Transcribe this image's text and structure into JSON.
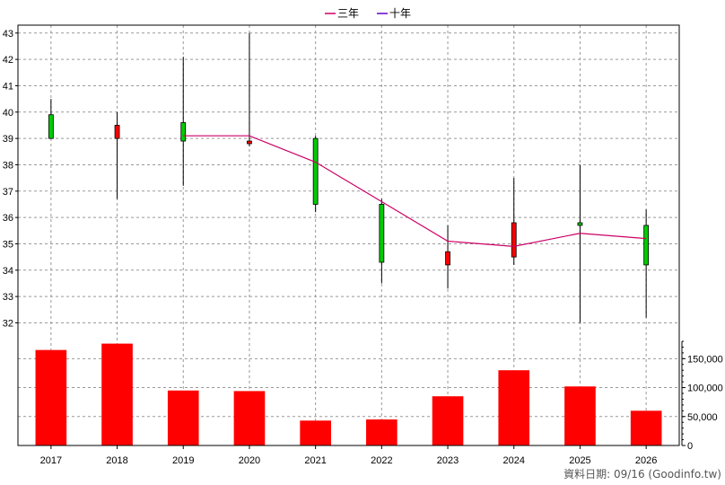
{
  "chart_data": {
    "type": "candlestick+bar",
    "legend": [
      {
        "label": "三年",
        "color": "#cc0066"
      },
      {
        "label": "十年",
        "color": "#6600cc"
      }
    ],
    "categories": [
      "2017",
      "2018",
      "2019",
      "2020",
      "2021",
      "2022",
      "2023",
      "2024",
      "2025",
      "2026"
    ],
    "price": {
      "ylim": [
        31.3,
        43.3
      ],
      "ticks": [
        32,
        33,
        34,
        35,
        36,
        37,
        38,
        39,
        40,
        41,
        42,
        43
      ],
      "candles": [
        {
          "year": "2017",
          "open": 39.0,
          "close": 39.9,
          "high": 40.5,
          "low": 39.0
        },
        {
          "year": "2018",
          "open": 39.5,
          "close": 39.0,
          "high": 40.0,
          "low": 36.7
        },
        {
          "year": "2019",
          "open": 38.9,
          "close": 39.6,
          "high": 42.1,
          "low": 37.2
        },
        {
          "year": "2020",
          "open": 38.9,
          "close": 38.8,
          "high": 43.0,
          "low": 38.7
        },
        {
          "year": "2021",
          "open": 36.5,
          "close": 39.0,
          "high": 39.1,
          "low": 36.2
        },
        {
          "year": "2022",
          "open": 34.3,
          "close": 36.5,
          "high": 36.7,
          "low": 33.5
        },
        {
          "year": "2023",
          "open": 34.7,
          "close": 34.2,
          "high": 35.7,
          "low": 33.3
        },
        {
          "year": "2024",
          "open": 35.8,
          "close": 34.5,
          "high": 37.5,
          "low": 34.2
        },
        {
          "year": "2025",
          "open": 35.7,
          "close": 35.8,
          "high": 38.0,
          "low": 32.0
        },
        {
          "year": "2026",
          "open": 34.2,
          "close": 35.7,
          "high": 36.3,
          "low": 32.2
        }
      ],
      "series": [
        {
          "name": "三年",
          "color": "#cc0066",
          "points": [
            {
              "year": "2019",
              "value": 39.1
            },
            {
              "year": "2020",
              "value": 39.1
            },
            {
              "year": "2021",
              "value": 38.1
            },
            {
              "year": "2022",
              "value": 36.6
            },
            {
              "year": "2023",
              "value": 35.1
            },
            {
              "year": "2024",
              "value": 34.9
            },
            {
              "year": "2025",
              "value": 35.4
            },
            {
              "year": "2026",
              "value": 35.2
            }
          ]
        }
      ],
      "up_color": "#00cc00",
      "down_color": "#ff0000"
    },
    "volume": {
      "ylim": [
        0,
        180000
      ],
      "ticks": [
        0,
        50000,
        100000,
        150000
      ],
      "tick_labels": [
        "0",
        "50,000",
        "100,000",
        "150,000"
      ],
      "values": [
        165000,
        176000,
        95000,
        94000,
        43000,
        45000,
        85000,
        130000,
        102000,
        60000
      ],
      "color": "#ff0000"
    },
    "grid": true,
    "footer": "資料日期: 09/16  (Goodinfo.tw)"
  }
}
